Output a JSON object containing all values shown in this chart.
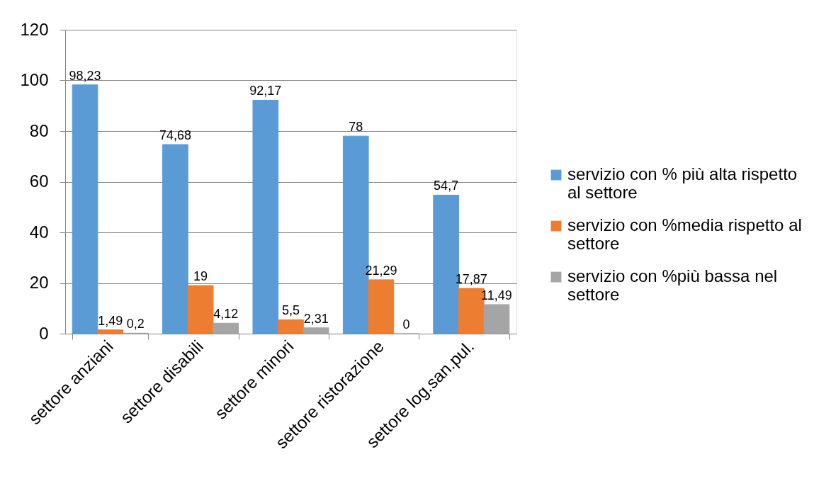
{
  "chart_data": {
    "type": "bar",
    "categories": [
      "settore anziani",
      "settore disabili",
      "settore minori",
      "settore ristorazione",
      "settore log.san.pul."
    ],
    "series": [
      {
        "name": "servizio con % più alta rispetto al settore",
        "color": "#5b9bd5",
        "values": [
          98.23,
          74.68,
          92.17,
          78,
          54.7
        ],
        "value_labels": [
          "98,23",
          "74,68",
          "92,17",
          "78",
          "54,7"
        ]
      },
      {
        "name": "servizio con %media rispetto al settore",
        "color": "#ed7d31",
        "values": [
          1.49,
          19,
          5.5,
          21.29,
          17.87
        ],
        "value_labels": [
          "1,49",
          "19",
          "5,5",
          "21,29",
          "17,87"
        ]
      },
      {
        "name": "servizio con %più bassa nel settore",
        "color": "#a5a5a5",
        "values": [
          0.2,
          4.12,
          2.31,
          0,
          11.49
        ],
        "value_labels": [
          "0,2",
          "4,12",
          "2,31",
          "0",
          "11,49"
        ]
      }
    ],
    "ylim": [
      0,
      120
    ],
    "yticks": [
      0,
      20,
      40,
      60,
      80,
      100,
      120
    ],
    "grid": "y",
    "legend": "right"
  }
}
